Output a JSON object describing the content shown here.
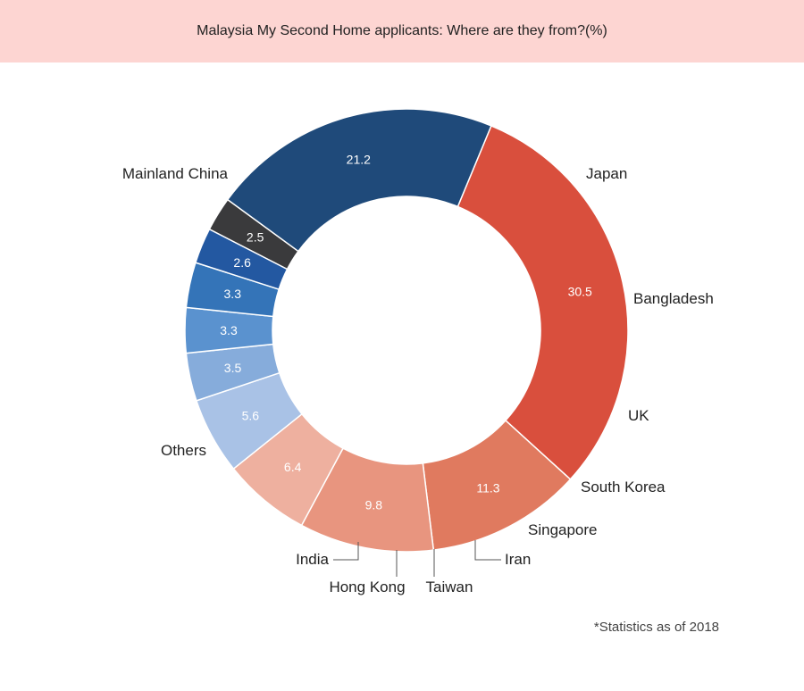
{
  "chart_data": {
    "type": "pie",
    "title": "Malaysia My Second Home applicants: Where are they from?(%)",
    "footnote": "*Statistics as of 2018",
    "categories": [
      "Mainland China",
      "Japan",
      "Bangladesh",
      "UK",
      "South Korea",
      "Singapore",
      "Iran",
      "Taiwan",
      "Hong Kong",
      "India",
      "Others"
    ],
    "values": [
      30.5,
      11.3,
      9.8,
      6.4,
      5.6,
      3.5,
      3.3,
      3.3,
      2.6,
      2.5,
      21.2
    ],
    "value_labels": [
      "30.5",
      "11.3",
      "9.8",
      "6.4",
      "5.6",
      "3.5",
      "3.3",
      "3.3",
      "2.6",
      "2.5",
      "21.2"
    ],
    "colors": [
      "#d94f3d",
      "#e07a5f",
      "#e8957f",
      "#eeb09f",
      "#a9c2e6",
      "#86acdb",
      "#5a92cf",
      "#3474b8",
      "#2358a1",
      "#3a3a3c",
      "#1f4a7a"
    ],
    "donut": true,
    "legend": "none"
  }
}
